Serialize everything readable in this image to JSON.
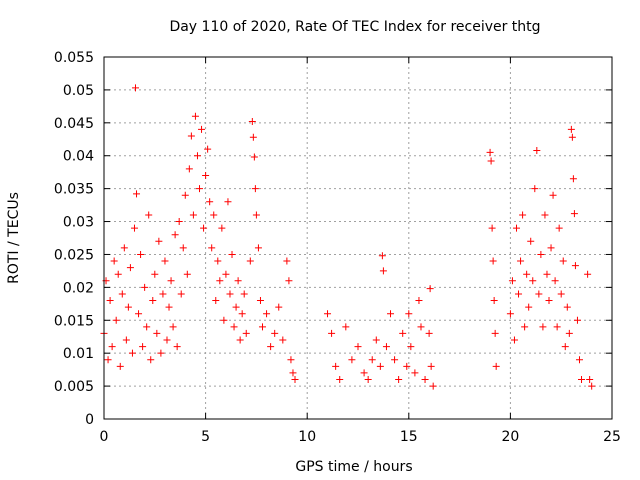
{
  "chart_data": {
    "type": "scatter",
    "title": "Day 110 of 2020, Rate Of TEC Index for receiver thtg",
    "xlabel": "GPS time / hours",
    "ylabel": "ROTI / TECUs",
    "xlim": [
      0,
      25
    ],
    "ylim": [
      0,
      0.055
    ],
    "x_ticks": [
      0,
      5,
      10,
      15,
      20,
      25
    ],
    "x_tick_labels": [
      "0",
      "5",
      "10",
      "15",
      "20",
      "25"
    ],
    "y_ticks": [
      0,
      0.005,
      0.01,
      0.015,
      0.02,
      0.025,
      0.03,
      0.035,
      0.04,
      0.045,
      0.05,
      0.055
    ],
    "y_tick_labels": [
      "0",
      "0.005",
      "0.01",
      "0.015",
      "0.02",
      "0.025",
      "0.03",
      "0.035",
      "0.04",
      "0.045",
      "0.05",
      "0.055"
    ],
    "grid": true,
    "marker": "+",
    "marker_color": "#ff0000",
    "series": [
      {
        "name": "ROTI",
        "points": [
          [
            0.0,
            0.013
          ],
          [
            0.1,
            0.021
          ],
          [
            0.2,
            0.009
          ],
          [
            0.3,
            0.018
          ],
          [
            0.4,
            0.011
          ],
          [
            0.5,
            0.024
          ],
          [
            0.6,
            0.015
          ],
          [
            0.7,
            0.022
          ],
          [
            0.8,
            0.008
          ],
          [
            0.9,
            0.019
          ],
          [
            1.0,
            0.026
          ],
          [
            1.1,
            0.012
          ],
          [
            1.2,
            0.017
          ],
          [
            1.3,
            0.023
          ],
          [
            1.4,
            0.01
          ],
          [
            1.5,
            0.029
          ],
          [
            1.55,
            0.0503
          ],
          [
            1.6,
            0.0342
          ],
          [
            1.7,
            0.016
          ],
          [
            1.8,
            0.025
          ],
          [
            1.9,
            0.011
          ],
          [
            2.0,
            0.02
          ],
          [
            2.1,
            0.014
          ],
          [
            2.2,
            0.031
          ],
          [
            2.3,
            0.009
          ],
          [
            2.4,
            0.018
          ],
          [
            2.5,
            0.022
          ],
          [
            2.6,
            0.013
          ],
          [
            2.7,
            0.027
          ],
          [
            2.8,
            0.01
          ],
          [
            2.9,
            0.019
          ],
          [
            3.0,
            0.024
          ],
          [
            3.1,
            0.012
          ],
          [
            3.2,
            0.017
          ],
          [
            3.3,
            0.021
          ],
          [
            3.4,
            0.014
          ],
          [
            3.5,
            0.028
          ],
          [
            3.6,
            0.011
          ],
          [
            3.7,
            0.03
          ],
          [
            3.8,
            0.019
          ],
          [
            3.9,
            0.026
          ],
          [
            4.0,
            0.034
          ],
          [
            4.1,
            0.022
          ],
          [
            4.2,
            0.038
          ],
          [
            4.3,
            0.043
          ],
          [
            4.4,
            0.031
          ],
          [
            4.5,
            0.046
          ],
          [
            4.6,
            0.04
          ],
          [
            4.7,
            0.035
          ],
          [
            4.8,
            0.044
          ],
          [
            4.9,
            0.029
          ],
          [
            5.0,
            0.037
          ],
          [
            5.1,
            0.041
          ],
          [
            5.2,
            0.033
          ],
          [
            5.3,
            0.026
          ],
          [
            5.4,
            0.031
          ],
          [
            5.5,
            0.018
          ],
          [
            5.6,
            0.024
          ],
          [
            5.7,
            0.021
          ],
          [
            5.8,
            0.029
          ],
          [
            5.9,
            0.015
          ],
          [
            6.0,
            0.022
          ],
          [
            6.1,
            0.033
          ],
          [
            6.2,
            0.019
          ],
          [
            6.3,
            0.025
          ],
          [
            6.4,
            0.014
          ],
          [
            6.5,
            0.017
          ],
          [
            6.6,
            0.021
          ],
          [
            6.7,
            0.012
          ],
          [
            6.8,
            0.016
          ],
          [
            6.9,
            0.019
          ],
          [
            7.0,
            0.013
          ],
          [
            7.2,
            0.024
          ],
          [
            7.3,
            0.0452
          ],
          [
            7.35,
            0.0428
          ],
          [
            7.4,
            0.0398
          ],
          [
            7.45,
            0.035
          ],
          [
            7.5,
            0.031
          ],
          [
            7.6,
            0.026
          ],
          [
            7.7,
            0.018
          ],
          [
            7.8,
            0.014
          ],
          [
            8.0,
            0.016
          ],
          [
            8.2,
            0.011
          ],
          [
            8.4,
            0.013
          ],
          [
            8.6,
            0.017
          ],
          [
            8.8,
            0.012
          ],
          [
            9.0,
            0.024
          ],
          [
            9.1,
            0.021
          ],
          [
            9.2,
            0.009
          ],
          [
            9.3,
            0.007
          ],
          [
            9.4,
            0.006
          ],
          [
            11.0,
            0.016
          ],
          [
            11.2,
            0.013
          ],
          [
            11.4,
            0.008
          ],
          [
            11.6,
            0.006
          ],
          [
            11.9,
            0.014
          ],
          [
            12.2,
            0.009
          ],
          [
            12.5,
            0.011
          ],
          [
            12.8,
            0.007
          ],
          [
            13.0,
            0.006
          ],
          [
            13.2,
            0.009
          ],
          [
            13.4,
            0.012
          ],
          [
            13.6,
            0.008
          ],
          [
            13.7,
            0.0248
          ],
          [
            13.75,
            0.0225
          ],
          [
            13.9,
            0.011
          ],
          [
            14.1,
            0.016
          ],
          [
            14.3,
            0.009
          ],
          [
            14.5,
            0.006
          ],
          [
            14.7,
            0.013
          ],
          [
            14.9,
            0.008
          ],
          [
            15.0,
            0.016
          ],
          [
            15.1,
            0.011
          ],
          [
            15.3,
            0.007
          ],
          [
            15.5,
            0.018
          ],
          [
            15.6,
            0.014
          ],
          [
            15.8,
            0.006
          ],
          [
            16.0,
            0.013
          ],
          [
            16.05,
            0.0198
          ],
          [
            16.1,
            0.008
          ],
          [
            16.2,
            0.005
          ],
          [
            19.0,
            0.0405
          ],
          [
            19.05,
            0.0392
          ],
          [
            19.1,
            0.029
          ],
          [
            19.15,
            0.024
          ],
          [
            19.2,
            0.018
          ],
          [
            19.25,
            0.013
          ],
          [
            19.3,
            0.008
          ],
          [
            20.0,
            0.016
          ],
          [
            20.1,
            0.021
          ],
          [
            20.2,
            0.012
          ],
          [
            20.3,
            0.029
          ],
          [
            20.4,
            0.019
          ],
          [
            20.5,
            0.024
          ],
          [
            20.6,
            0.031
          ],
          [
            20.7,
            0.014
          ],
          [
            20.8,
            0.022
          ],
          [
            20.9,
            0.017
          ],
          [
            21.0,
            0.027
          ],
          [
            21.1,
            0.021
          ],
          [
            21.2,
            0.035
          ],
          [
            21.3,
            0.0408
          ],
          [
            21.4,
            0.019
          ],
          [
            21.5,
            0.025
          ],
          [
            21.6,
            0.014
          ],
          [
            21.7,
            0.031
          ],
          [
            21.8,
            0.022
          ],
          [
            21.9,
            0.018
          ],
          [
            22.0,
            0.026
          ],
          [
            22.1,
            0.034
          ],
          [
            22.2,
            0.021
          ],
          [
            22.3,
            0.014
          ],
          [
            22.4,
            0.029
          ],
          [
            22.5,
            0.019
          ],
          [
            22.6,
            0.024
          ],
          [
            22.7,
            0.011
          ],
          [
            22.8,
            0.017
          ],
          [
            22.9,
            0.013
          ],
          [
            23.0,
            0.044
          ],
          [
            23.05,
            0.0428
          ],
          [
            23.1,
            0.0365
          ],
          [
            23.15,
            0.0312
          ],
          [
            23.2,
            0.0233
          ],
          [
            23.3,
            0.015
          ],
          [
            23.4,
            0.009
          ],
          [
            23.5,
            0.006
          ],
          [
            23.8,
            0.022
          ],
          [
            23.9,
            0.006
          ],
          [
            24.0,
            0.005
          ]
        ]
      }
    ]
  }
}
